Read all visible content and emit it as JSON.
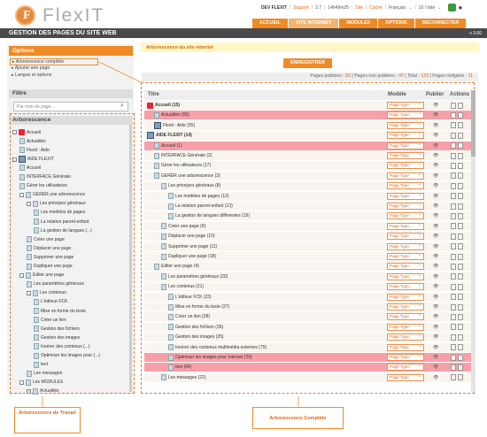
{
  "app": {
    "logo_text": "FlexIT",
    "logo_letter": "F"
  },
  "topbar": {
    "user": "DEV FLEXIT",
    "support": "Support",
    "version_small": "3.7",
    "time": "14h49m25",
    "site": "Site",
    "cache": "Cache",
    "language": "Français",
    "pages_per_view": "10 / liste"
  },
  "nav": {
    "items": [
      {
        "label": "ACCUEIL"
      },
      {
        "label": "SITE INTERNET"
      },
      {
        "label": "MODULES"
      },
      {
        "label": "OPTIONS"
      },
      {
        "label": "DECONNECTER"
      }
    ]
  },
  "title": {
    "text": "GESTION DES PAGES DU SITE WEB",
    "version": "v 3.60"
  },
  "options": {
    "heading": "Options",
    "links": [
      "Arborescence complète",
      "Ajouter une page",
      "Langue et options"
    ]
  },
  "filter": {
    "heading": "Filtre",
    "placeholder": "Par nom de page..."
  },
  "tree": {
    "heading": "Arborescence",
    "items": [
      "Accueil",
      "Actualités",
      "Flexit : Aide",
      "AIDE FLEXIT",
      "Accueil",
      "INTERFACE Générale",
      "Gérer les utilisateurs",
      "GERER une arborescence",
      "Les principes généraux",
      "Les modèles de pages",
      "La relation parent-enfant",
      "La gestion de langues (...)",
      "Créer une page",
      "Déplacer une page",
      "Supprimer une page",
      "Dupliquer une page",
      "Editer une page",
      "Les paramètres généraux",
      "Les contenus",
      "L'éditeur FCK",
      "Mise en forme du texte",
      "Créer un lien",
      "Gestion des fichiers",
      "Gestion des images",
      "Insérer des contenus (...)",
      "Optimiser les images pour (...)",
      "test",
      "Les messages",
      "Les MODULES",
      "Actualités"
    ]
  },
  "main": {
    "heading": "Arborescence du site internet",
    "register_label": "ENREGISTRER",
    "stats": {
      "published_label": "Pages publiées :",
      "published": "83",
      "unpublished_label": "Pages non publiées :",
      "unpublished": "40",
      "total_label": "Total :",
      "total": "123",
      "edited_label": "Pages rédigées :",
      "edited": "11"
    },
    "columns": {
      "title": "Titre",
      "model": "Modèle",
      "publish": "Publier",
      "actions": "Actions"
    },
    "select_value": "Page Type",
    "rows": [
      {
        "label": "Accueil (15)",
        "bold": true
      },
      {
        "label": "Actualités (65)"
      },
      {
        "label": "Flexit : Aide (55)"
      },
      {
        "label": "AIDE FLEXIT (14)",
        "bold": true
      },
      {
        "label": "Accueil (1)"
      },
      {
        "label": "INTERFACE Générale (2)"
      },
      {
        "label": "Gérer les utilisateurs (17)"
      },
      {
        "label": "GERER une arborescence (3)"
      },
      {
        "label": "Les principes généraux (8)"
      },
      {
        "label": "Les modèles de pages (12)"
      },
      {
        "label": "La relation parent-enfant (13)"
      },
      {
        "label": "La gestion de langues différentes (19)"
      },
      {
        "label": "Créer une page (9)"
      },
      {
        "label": "Déplacer une page (10)"
      },
      {
        "label": "Supprimer une page (11)"
      },
      {
        "label": "Dupliquer une page (18)"
      },
      {
        "label": "Editer une page (4)"
      },
      {
        "label": "Les paramètres généraux (20)"
      },
      {
        "label": "Les contenus (21)"
      },
      {
        "label": "L'éditeur FCK (23)"
      },
      {
        "label": "Mise en forme du texte (27)"
      },
      {
        "label": "Créer un lien (28)"
      },
      {
        "label": "Gestion des fichiers (26)"
      },
      {
        "label": "Gestion des images (25)"
      },
      {
        "label": "Insérer des contenus multimédia externes (79)"
      },
      {
        "label": "Optimiser les images pour Internet (29)"
      },
      {
        "label": "test (64)"
      },
      {
        "label": "Les messages (22)"
      }
    ]
  },
  "annotations": {
    "left": "Arborescence de Travail",
    "right": "Arborescence Complète"
  }
}
